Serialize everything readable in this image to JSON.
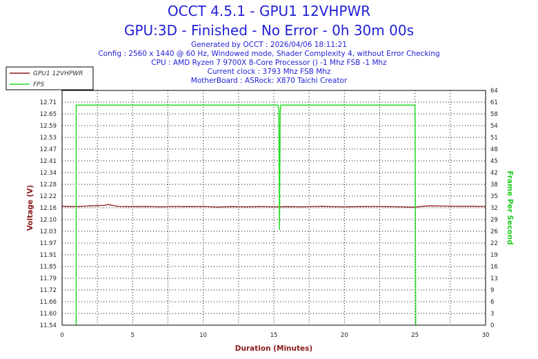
{
  "header": {
    "title": "OCCT 4.5.1 - GPU1 12VHPWR",
    "subtitle": "GPU:3D - Finished - No Error - 0h 30m 00s",
    "lines": [
      "Generated by OCCT : 2026/04/06 18:11:21",
      "Config : 2560 x 1440 @ 60 Hz, Windowed mode, Shader Complexity 4, without Error Checking",
      "CPU : AMD Ryzen 7 9700X 8-Core Processor () -1 Mhz FSB -1 Mhz",
      "Current clock : 3793 Mhz FSB  Mhz",
      "MotherBoard : ASRock: X870 Taichi Creator"
    ]
  },
  "colors": {
    "voltage": "#8b1a1a",
    "fps": "#22dd22",
    "axis_left": "#8b1a1a",
    "axis_right": "#22cc22",
    "grid": "#000000"
  },
  "chart_data": {
    "type": "line",
    "xlabel": "Duration (Minutes)",
    "ylabel": "Voltage (V)",
    "y2label": "Frame Per Second",
    "xlim": [
      0,
      30
    ],
    "ylim": [
      11.54,
      12.77
    ],
    "y2lim": [
      0,
      64
    ],
    "x_ticks": [
      "0",
      "5",
      "10",
      "15",
      "20",
      "25",
      "30"
    ],
    "y_ticks": [
      "11.54",
      "11.60",
      "11.66",
      "11.72",
      "11.79",
      "11.85",
      "11.91",
      "11.97",
      "12.03",
      "12.10",
      "12.16",
      "12.22",
      "12.28",
      "12.34",
      "12.41",
      "12.47",
      "12.53",
      "12.59",
      "12.65",
      "12.71"
    ],
    "y2_ticks": [
      "0",
      "3",
      "6",
      "9",
      "13",
      "16",
      "19",
      "22",
      "26",
      "29",
      "32",
      "35",
      "38",
      "42",
      "45",
      "48",
      "51",
      "54",
      "58",
      "61",
      "64"
    ],
    "grid": true,
    "legend_position": "top-left",
    "series": [
      {
        "name": "GPU1 12VHPWR",
        "axis": "left",
        "x": [
          0,
          1,
          2,
          3,
          3.3,
          4,
          5,
          6,
          7,
          8,
          9,
          10,
          11,
          12,
          13,
          14,
          15,
          16,
          17,
          18,
          18.5,
          19,
          20,
          21,
          22,
          23,
          24,
          25,
          25.5,
          26,
          27,
          28,
          29,
          30
        ],
        "y": [
          12.163,
          12.161,
          12.165,
          12.168,
          12.172,
          12.162,
          12.161,
          12.162,
          12.16,
          12.162,
          12.161,
          12.162,
          12.159,
          12.161,
          12.16,
          12.161,
          12.16,
          12.161,
          12.16,
          12.162,
          12.163,
          12.161,
          12.16,
          12.161,
          12.162,
          12.161,
          12.16,
          12.158,
          12.163,
          12.165,
          12.164,
          12.163,
          12.163,
          12.162
        ]
      },
      {
        "name": "FPS",
        "axis": "right",
        "x": [
          1.0,
          1.0,
          15.25,
          15.3,
          15.35,
          15.4,
          15.45,
          15.5,
          15.55,
          25.0,
          25.05
        ],
        "y": [
          0,
          60,
          60,
          60,
          59,
          26,
          58,
          60,
          60,
          60,
          0
        ]
      }
    ]
  }
}
